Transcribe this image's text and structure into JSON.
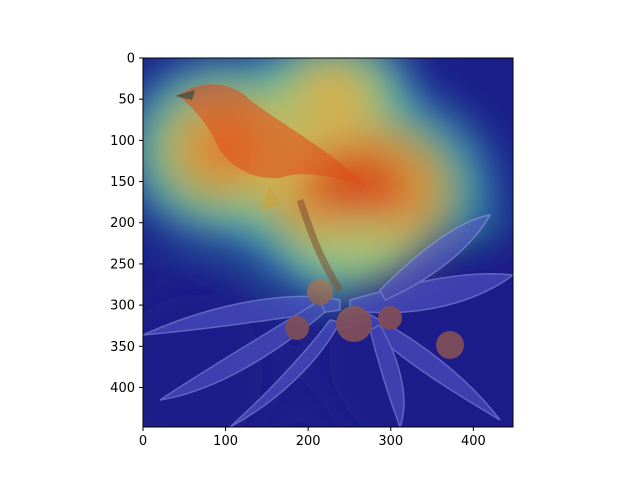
{
  "chart_data": {
    "type": "heatmap",
    "title": "",
    "xlabel": "",
    "ylabel": "",
    "xlim": [
      0,
      448
    ],
    "ylim": [
      448,
      0
    ],
    "xticks": [
      0,
      100,
      200,
      300,
      400
    ],
    "yticks": [
      0,
      50,
      100,
      150,
      200,
      250,
      300,
      350,
      400
    ],
    "grid": false,
    "colormap": "jet",
    "overlay_on_photo": true,
    "photo_subject": "bird-on-loquat-branch",
    "hot_regions": [
      {
        "cx": 260,
        "cy": 160,
        "rx": 120,
        "ry": 90,
        "intensity": 1.0
      },
      {
        "cx": 100,
        "cy": 110,
        "rx": 90,
        "ry": 80,
        "intensity": 0.9
      },
      {
        "cx": 230,
        "cy": 40,
        "rx": 70,
        "ry": 50,
        "intensity": 0.8
      },
      {
        "cx": 260,
        "cy": 230,
        "rx": 70,
        "ry": 40,
        "intensity": 0.65
      }
    ],
    "cool_regions": [
      {
        "cx": 400,
        "cy": 360,
        "rx": 200,
        "ry": 160,
        "intensity": 0.0
      },
      {
        "cx": 60,
        "cy": 380,
        "rx": 110,
        "ry": 120,
        "intensity": 0.0
      }
    ],
    "colors": {
      "cold": "#1b1f8a",
      "mid": "#3fd0c0",
      "warm": "#f0c040",
      "hot": "#d83a10"
    }
  }
}
